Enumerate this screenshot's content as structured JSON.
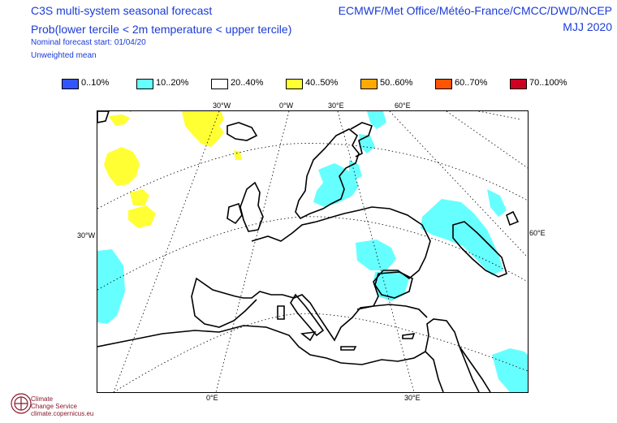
{
  "header": {
    "title": "C3S multi-system seasonal forecast",
    "subtitle": "Prob(lower tercile < 2m temperature < upper tercile)",
    "start": "Nominal forecast start: 01/04/20",
    "mean": "Unweighted mean",
    "centres": "ECMWF/Met Office/Météo-France/CMCC/DWD/NCEP",
    "season": "MJJ 2020"
  },
  "legend": [
    {
      "label": "0..10%",
      "color": "#3355ff"
    },
    {
      "label": "10..20%",
      "color": "#66ffff"
    },
    {
      "label": "20..40%",
      "color": "#ffffff"
    },
    {
      "label": "40..50%",
      "color": "#ffff33"
    },
    {
      "label": "50..60%",
      "color": "#ffaa00"
    },
    {
      "label": "60..70%",
      "color": "#ff5500"
    },
    {
      "label": "70..100%",
      "color": "#cc0022"
    }
  ],
  "map": {
    "top_labels": [
      "30°W",
      "0°W",
      "30°E",
      "60°E"
    ],
    "left_label": "30°W",
    "right_label": "60°E",
    "bottom_labels": [
      "0°E",
      "30°E"
    ],
    "fill_colors": {
      "cyan": "#66ffff",
      "yellow": "#ffff33"
    }
  },
  "logo": {
    "line1": "Climate",
    "line2": "Change Service",
    "line3": "climate.copernicus.eu"
  }
}
